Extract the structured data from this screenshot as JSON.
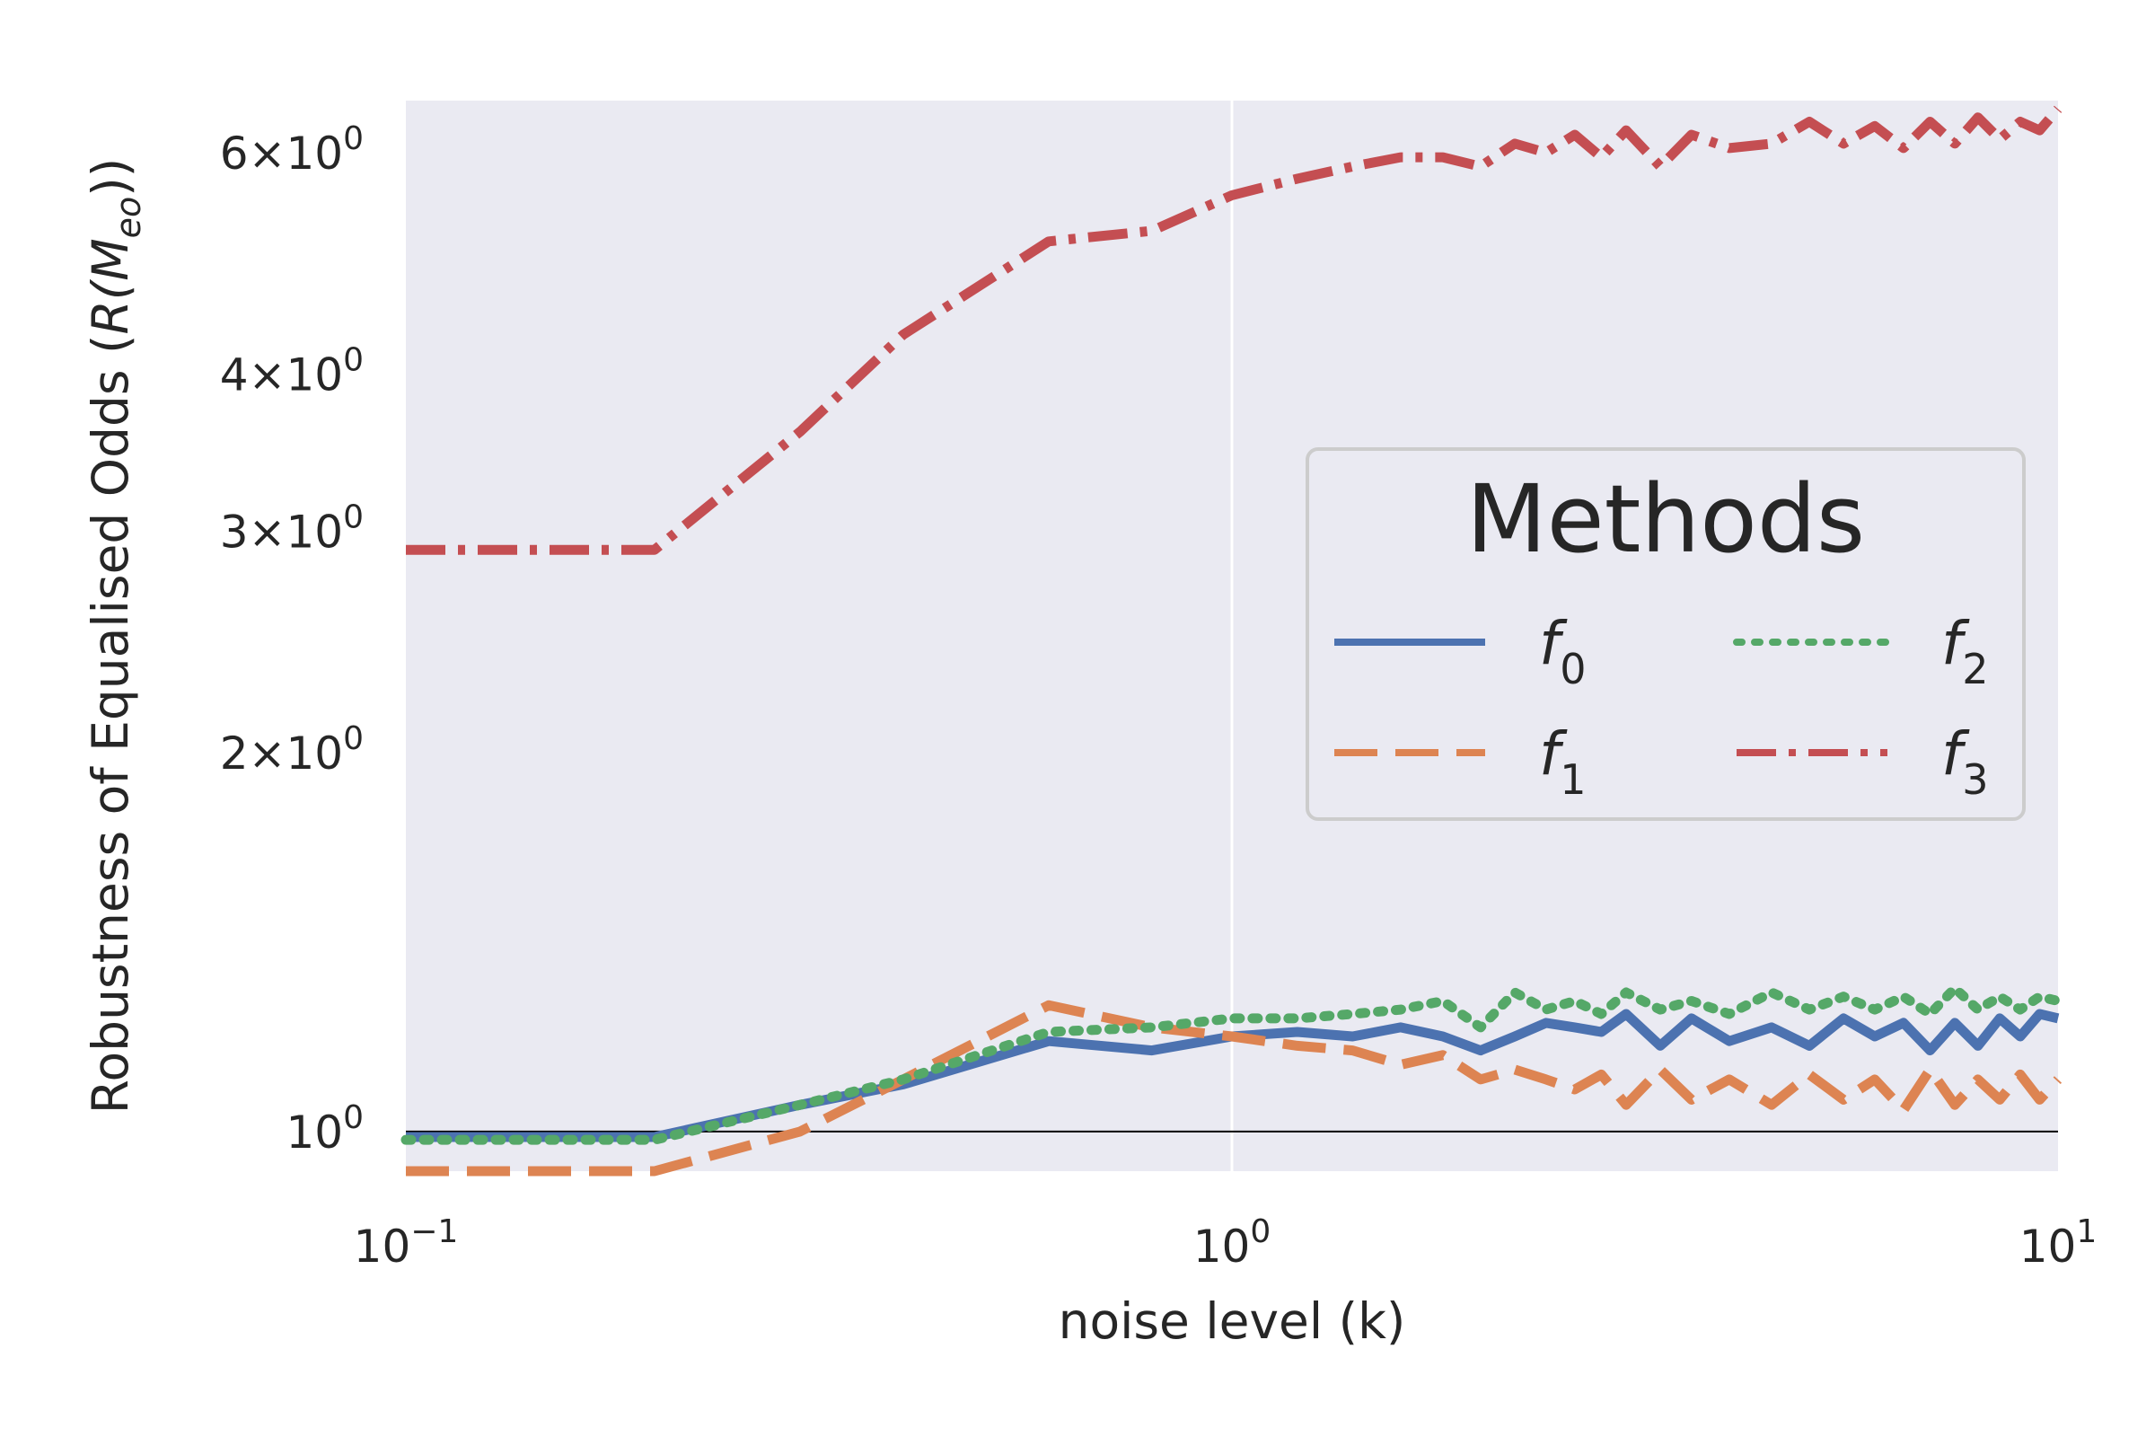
{
  "chart_data": {
    "type": "line",
    "title": "",
    "xlabel": "noise level (k)",
    "ylabel_prefix": "Robustness of Equalised Odds (",
    "ylabel_math": "R(M",
    "ylabel_sub": "eo",
    "ylabel_suffix": "))",
    "xscale": "log",
    "yscale": "log",
    "xlim": [
      0.1,
      10
    ],
    "ylim": [
      0.93,
      6.6
    ],
    "x_ticks": [
      {
        "value": 0.1,
        "base": "10",
        "exp": "−1"
      },
      {
        "value": 1,
        "base": "10",
        "exp": "0"
      },
      {
        "value": 10,
        "base": "10",
        "exp": "1"
      }
    ],
    "y_ticks": [
      {
        "value": 1,
        "mant": "",
        "base": "10",
        "exp": "0"
      },
      {
        "value": 2,
        "mant": "2×",
        "base": "10",
        "exp": "0"
      },
      {
        "value": 3,
        "mant": "3×",
        "base": "10",
        "exp": "0"
      },
      {
        "value": 4,
        "mant": "4×",
        "base": "10",
        "exp": "0"
      },
      {
        "value": 6,
        "mant": "6×",
        "base": "10",
        "exp": "0"
      }
    ],
    "reference_line": 1.0,
    "legend": {
      "title": "Methods",
      "location": "center-right",
      "columns": 2
    },
    "series": [
      {
        "name": "f",
        "sub": "0",
        "color": "#4c72b0",
        "style": "solid",
        "x": [
          0.1,
          0.2,
          0.3,
          0.4,
          0.6,
          0.8,
          1.0,
          1.2,
          1.4,
          1.6,
          1.8,
          2.0,
          2.2,
          2.4,
          2.6,
          2.8,
          3.0,
          3.3,
          3.6,
          4.0,
          4.5,
          5.0,
          5.5,
          6.0,
          6.5,
          7.0,
          7.5,
          8.0,
          8.5,
          9.0,
          9.5,
          10.0
        ],
        "values": [
          0.99,
          0.99,
          1.05,
          1.09,
          1.18,
          1.16,
          1.19,
          1.2,
          1.19,
          1.21,
          1.19,
          1.16,
          1.19,
          1.22,
          1.21,
          1.2,
          1.24,
          1.17,
          1.23,
          1.18,
          1.21,
          1.17,
          1.23,
          1.19,
          1.22,
          1.16,
          1.22,
          1.17,
          1.23,
          1.19,
          1.24,
          1.23
        ]
      },
      {
        "name": "f",
        "sub": "1",
        "color": "#dd8452",
        "style": "dashed",
        "x": [
          0.1,
          0.2,
          0.3,
          0.4,
          0.6,
          0.8,
          1.0,
          1.2,
          1.4,
          1.6,
          1.8,
          2.0,
          2.2,
          2.4,
          2.6,
          2.8,
          3.0,
          3.3,
          3.6,
          4.0,
          4.5,
          5.0,
          5.5,
          6.0,
          6.5,
          7.0,
          7.5,
          8.0,
          8.5,
          9.0,
          9.5,
          10.0
        ],
        "values": [
          0.93,
          0.93,
          1.0,
          1.1,
          1.26,
          1.21,
          1.19,
          1.17,
          1.16,
          1.13,
          1.15,
          1.1,
          1.12,
          1.1,
          1.08,
          1.11,
          1.05,
          1.12,
          1.06,
          1.1,
          1.05,
          1.11,
          1.06,
          1.1,
          1.04,
          1.12,
          1.05,
          1.1,
          1.06,
          1.11,
          1.06,
          1.1
        ]
      },
      {
        "name": "f",
        "sub": "2",
        "color": "#55a868",
        "style": "dotted",
        "x": [
          0.1,
          0.2,
          0.3,
          0.4,
          0.6,
          0.8,
          1.0,
          1.2,
          1.4,
          1.6,
          1.8,
          2.0,
          2.2,
          2.4,
          2.6,
          2.8,
          3.0,
          3.3,
          3.6,
          4.0,
          4.5,
          5.0,
          5.5,
          6.0,
          6.5,
          7.0,
          7.5,
          8.0,
          8.5,
          9.0,
          9.5,
          10.0
        ],
        "values": [
          0.985,
          0.985,
          1.05,
          1.1,
          1.2,
          1.21,
          1.23,
          1.23,
          1.24,
          1.25,
          1.27,
          1.21,
          1.29,
          1.25,
          1.27,
          1.24,
          1.29,
          1.25,
          1.27,
          1.24,
          1.29,
          1.25,
          1.28,
          1.25,
          1.28,
          1.24,
          1.3,
          1.25,
          1.28,
          1.25,
          1.28,
          1.27
        ]
      },
      {
        "name": "f",
        "sub": "3",
        "color": "#c44e52",
        "style": "dashdot",
        "x": [
          0.1,
          0.2,
          0.3,
          0.4,
          0.6,
          0.8,
          1.0,
          1.2,
          1.4,
          1.6,
          1.8,
          2.0,
          2.2,
          2.4,
          2.6,
          2.8,
          3.0,
          3.3,
          3.6,
          4.0,
          4.5,
          5.0,
          5.5,
          6.0,
          6.5,
          7.0,
          7.5,
          8.0,
          8.5,
          9.0,
          9.5,
          10.0
        ],
        "values": [
          2.9,
          2.9,
          3.6,
          4.3,
          5.1,
          5.2,
          5.55,
          5.72,
          5.85,
          5.95,
          5.95,
          5.85,
          6.1,
          6.0,
          6.2,
          5.95,
          6.25,
          5.85,
          6.2,
          6.05,
          6.1,
          6.35,
          6.1,
          6.3,
          6.05,
          6.35,
          6.1,
          6.4,
          6.15,
          6.35,
          6.25,
          6.5
        ]
      }
    ]
  }
}
